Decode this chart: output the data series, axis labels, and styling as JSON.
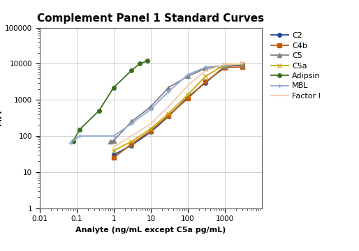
{
  "title": "Complement Panel 1 Standard Curves",
  "xlabel": "Analyte (ng/mL except C5a pg/mL)",
  "xlim": [
    0.01,
    10000
  ],
  "ylim": [
    1,
    100000
  ],
  "background_color": "#ffffff",
  "series": {
    "C2": {
      "color": "#2046a0",
      "marker": "o",
      "markersize": 4,
      "x": [
        1.0,
        3.0,
        10.0,
        30.0,
        100.0,
        300.0,
        1000.0,
        3000.0
      ],
      "y": [
        30,
        55,
        130,
        350,
        1200,
        3000,
        8500,
        9200
      ]
    },
    "C4b": {
      "color": "#c05a0a",
      "marker": "s",
      "markersize": 4,
      "x": [
        1.0,
        3.0,
        10.0,
        30.0,
        100.0,
        300.0,
        1000.0,
        3000.0
      ],
      "y": [
        25,
        60,
        140,
        370,
        1100,
        3200,
        7800,
        8200
      ]
    },
    "C5": {
      "color": "#808080",
      "marker": "^",
      "markersize": 4,
      "x": [
        0.8,
        1.0,
        3.0,
        10.0,
        30.0,
        100.0,
        300.0,
        1000.0,
        3000.0
      ],
      "y": [
        70,
        75,
        250,
        650,
        2200,
        4500,
        7500,
        8500,
        9000
      ]
    },
    "C5a": {
      "color": "#c8a800",
      "marker": "x",
      "markersize": 5,
      "x": [
        1.0,
        3.0,
        10.0,
        30.0,
        100.0,
        300.0,
        1000.0,
        3000.0
      ],
      "y": [
        40,
        70,
        160,
        420,
        1400,
        4500,
        9500,
        10000
      ]
    },
    "Adipsin": {
      "color": "#3a6e1e",
      "marker": "o",
      "markersize": 4,
      "x": [
        0.08,
        0.12,
        0.4,
        1.0,
        3.0,
        5.0,
        8.0
      ],
      "y": [
        70,
        150,
        500,
        2200,
        6500,
        10000,
        12000
      ]
    },
    "MBL": {
      "color": "#8fa8d8",
      "marker": "+",
      "markersize": 5,
      "x": [
        0.07,
        0.12,
        1.0,
        3.0,
        10.0,
        30.0,
        100.0,
        300.0,
        1000.0
      ],
      "y": [
        65,
        100,
        100,
        220,
        550,
        1700,
        5000,
        8000,
        9000
      ]
    },
    "Factor I": {
      "color": "#f5c8aa",
      "marker": "None",
      "markersize": 4,
      "x": [
        1.0,
        3.0,
        10.0,
        30.0,
        100.0,
        300.0,
        1000.0,
        3000.0
      ],
      "y": [
        50,
        100,
        220,
        650,
        2500,
        6500,
        9500,
        10000
      ]
    }
  }
}
